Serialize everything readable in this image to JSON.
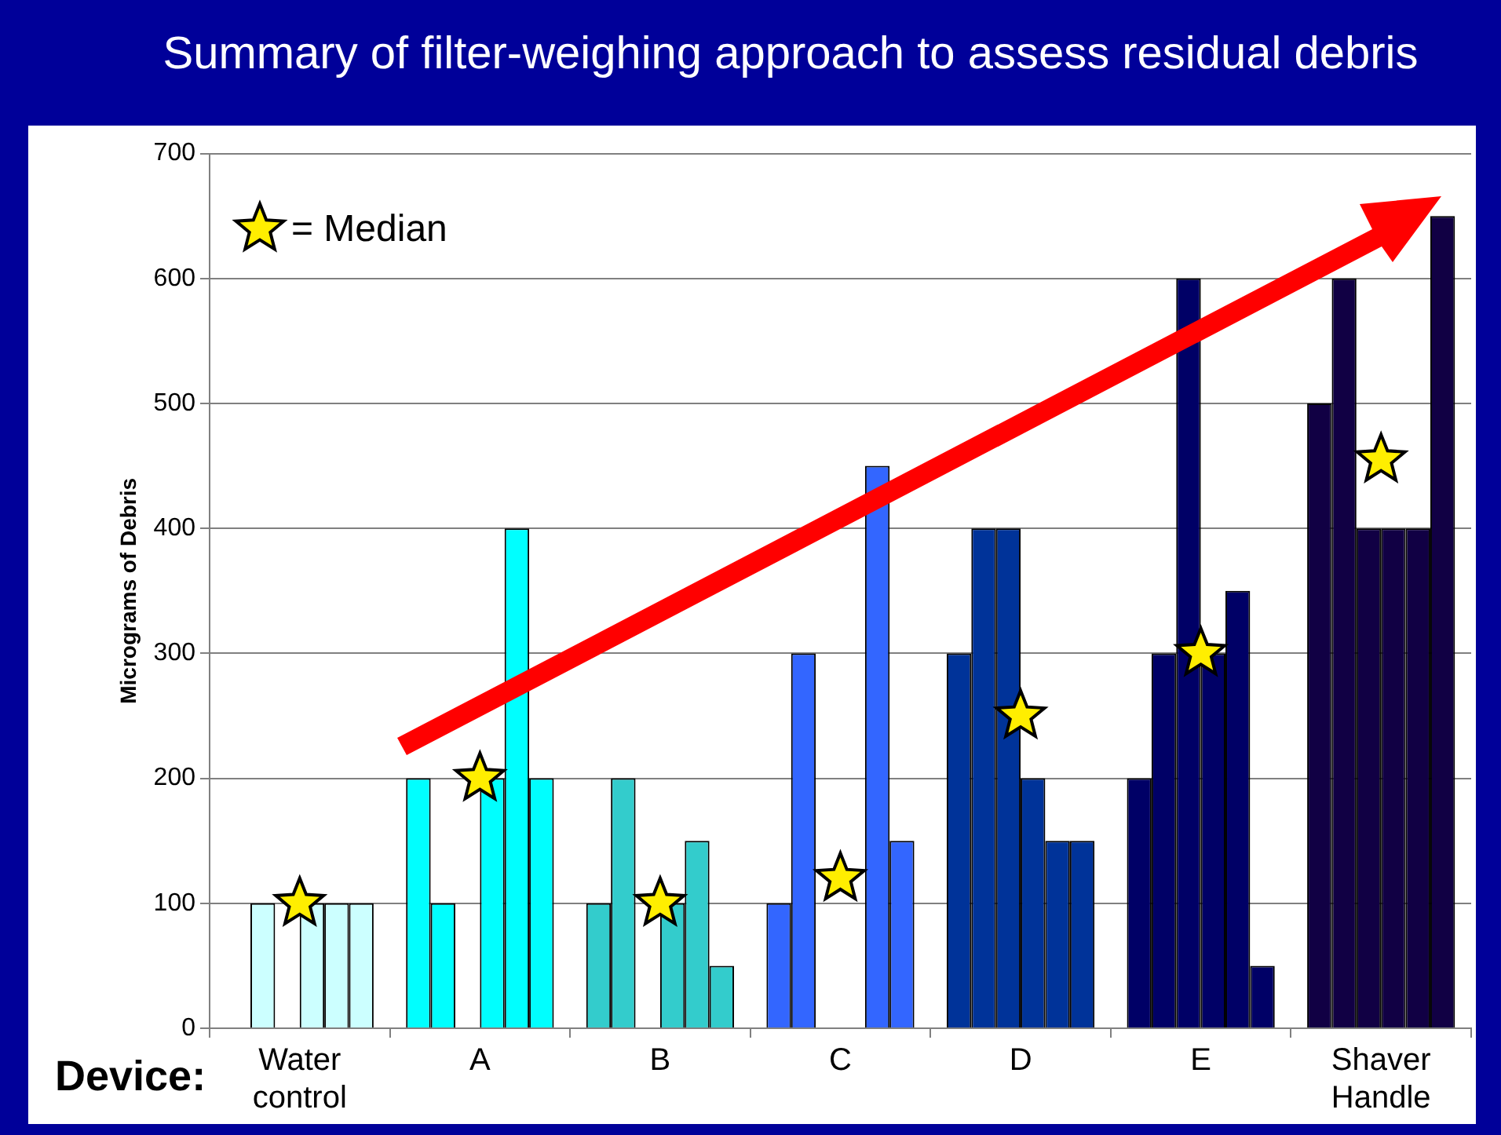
{
  "chart_data": {
    "type": "bar",
    "title": "Summary of filter-weighing approach to assess residual debris",
    "xlabel": "Device:",
    "ylabel": "Micrograms of Debris",
    "categories": [
      "Water control",
      "A",
      "B",
      "C",
      "D",
      "E",
      "Shaver Handle"
    ],
    "series": [
      {
        "colors": [
          "#ccffff",
          "#00ffff",
          "#33cccc",
          "#3366ff",
          "#003399",
          "#000066",
          "#110044"
        ],
        "values": [
          null,
          200,
          100,
          100,
          300,
          200,
          500
        ]
      },
      {
        "colors": [
          "#ccffff",
          "#00ffff",
          "#33cccc",
          "#3366ff",
          "#003399",
          "#000066",
          "#110044"
        ],
        "values": [
          100,
          100,
          200,
          300,
          400,
          300,
          600
        ]
      },
      {
        "colors": [
          "#ccffff",
          "#00ffff",
          "#33cccc",
          "#3366ff",
          "#003399",
          "#000066",
          "#110044"
        ],
        "values": [
          null,
          null,
          null,
          null,
          400,
          600,
          400
        ]
      },
      {
        "colors": [
          "#ccffff",
          "#00ffff",
          "#33cccc",
          "#3366ff",
          "#003399",
          "#000066",
          "#110044"
        ],
        "values": [
          100,
          200,
          100,
          null,
          200,
          300,
          400
        ]
      },
      {
        "colors": [
          "#ccffff",
          "#00ffff",
          "#33cccc",
          "#3366ff",
          "#003399",
          "#000066",
          "#110044"
        ],
        "values": [
          100,
          400,
          150,
          450,
          150,
          350,
          400
        ]
      },
      {
        "colors": [
          "#ccffff",
          "#00ffff",
          "#33cccc",
          "#3366ff",
          "#003399",
          "#000066",
          "#110044"
        ],
        "values": [
          100,
          200,
          50,
          150,
          150,
          50,
          650
        ]
      },
      {
        "type": "scatter",
        "name": "= Median",
        "color": "#ffee00",
        "marker": "star",
        "x": [
          "Water control",
          "A",
          "B",
          "C",
          "D",
          "E",
          "Shaver Handle"
        ],
        "values": [
          100,
          200,
          100,
          120,
          250,
          300,
          455
        ]
      }
    ],
    "ylim": [
      0,
      700
    ],
    "yticks": [
      0,
      100,
      200,
      300,
      400,
      500,
      600,
      700
    ],
    "grid": "y",
    "legend": "top left"
  }
}
